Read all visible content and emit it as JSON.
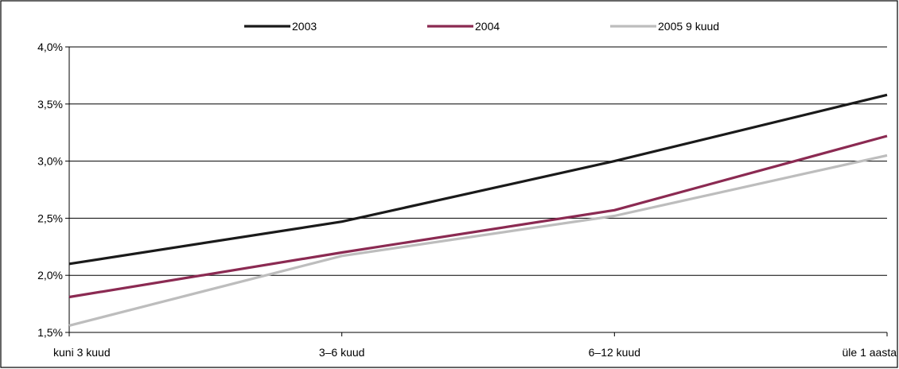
{
  "chart_data": {
    "type": "line",
    "categories": [
      "kuni 3 kuud",
      "3–6 kuud",
      "6–12 kuud",
      "üle 1 aasta"
    ],
    "series": [
      {
        "name": "2003",
        "color": "#1a1a1a",
        "values": [
          0.021,
          0.0247,
          0.03,
          0.0358
        ]
      },
      {
        "name": "2004",
        "color": "#8b2a52",
        "values": [
          0.0181,
          0.022,
          0.0257,
          0.0322
        ]
      },
      {
        "name": "2005 9 kuud",
        "color": "#bdbdbd",
        "values": [
          0.0156,
          0.0217,
          0.0252,
          0.0305
        ]
      }
    ],
    "yticks": [
      "1,5%",
      "2,0%",
      "2,5%",
      "3,0%",
      "3,5%",
      "4,0%"
    ],
    "ylim": [
      0.015,
      0.04
    ],
    "grid": true,
    "legend": "top"
  }
}
